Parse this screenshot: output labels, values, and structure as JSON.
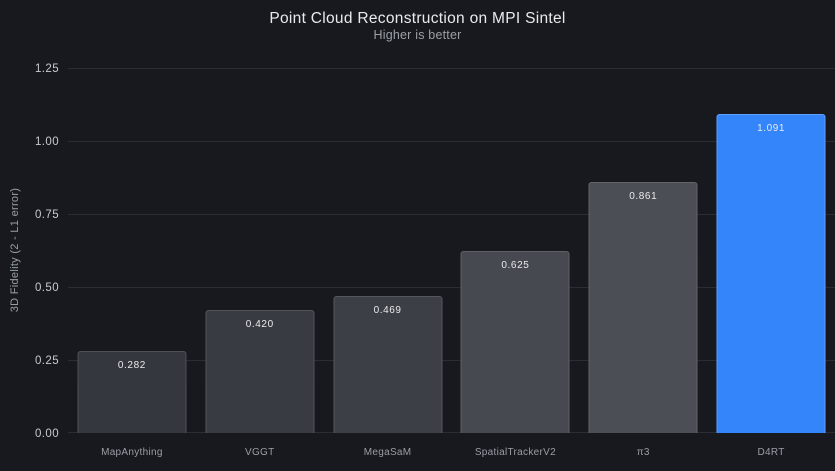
{
  "chart_data": {
    "type": "bar",
    "title": "Point Cloud Reconstruction on MPI Sintel",
    "subtitle": "Higher is better",
    "xlabel": "",
    "ylabel": "3D Fidelity (2 - L1 error)",
    "categories": [
      "MapAnything",
      "VGGT",
      "MegaSaM",
      "SpatialTrackerV2",
      "π3",
      "D4RT"
    ],
    "values": [
      0.282,
      0.42,
      0.469,
      0.625,
      0.861,
      1.091
    ],
    "value_labels": [
      "0.282",
      "0.420",
      "0.469",
      "0.625",
      "0.861",
      "1.091"
    ],
    "bar_colors": [
      "#34373d",
      "#383b41",
      "#3c3f45",
      "#46494f",
      "#4b4e54",
      "#3485f9"
    ],
    "highlight_index": 5,
    "highlight_color": "#3485f9",
    "ylim": [
      0,
      1.25
    ],
    "yticks": [
      0,
      0.25,
      0.5,
      0.75,
      1.0,
      1.25
    ],
    "ytick_labels": [
      "0.00",
      "0.25",
      "0.50",
      "0.75",
      "1.00",
      "1.25"
    ],
    "grid": true,
    "legend": false,
    "layout": {
      "background_color": "#17191e",
      "grid_color": "#2a2d33",
      "title_color": "#e8eaed",
      "subtitle_color": "#9aa0a6",
      "tick_label_color": "#c7cacf",
      "category_label_color": "#9a9ea5",
      "value_label_color": "#e8eaec"
    }
  }
}
